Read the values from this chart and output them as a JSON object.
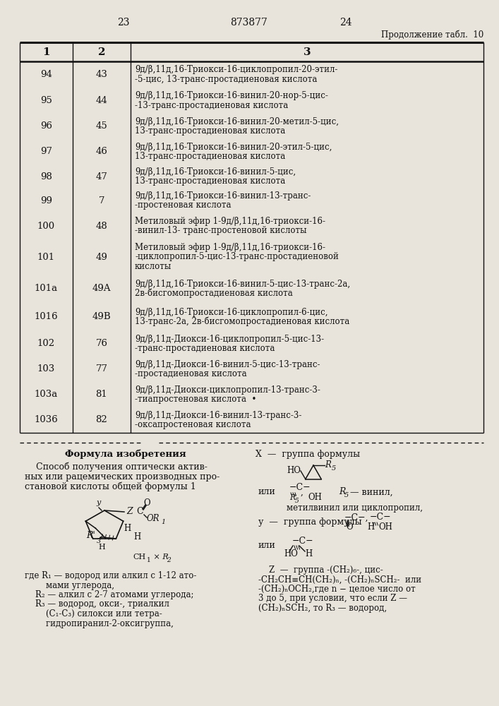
{
  "page_left": "23",
  "page_center": "873877",
  "page_right": "24",
  "continuation": "Продолжение табл.  10",
  "col1_header": "1",
  "col2_header": "2",
  "col3_header": "3",
  "rows": [
    {
      "c1": "94",
      "c2": "43",
      "c3": "9д/β,11д,16-Триокси-16-циклопропил-20-этил-\n-5-цис, 13-транс-простадиеновая кислота"
    },
    {
      "c1": "95",
      "c2": "44",
      "c3": "9д/β,11д,16-Триокси-16-винил-20-нор-5-цис-\n-13-транс-простадиеновая кислота"
    },
    {
      "c1": "96",
      "c2": "45",
      "c3": "9д/β,11д,16-Триокси-16-винил-20-метил-5-цис,\n13-транс-простадиеновая кислота"
    },
    {
      "c1": "97",
      "c2": "46",
      "c3": "9д/β,11д,16-Триокси-16-винил-20-этил-5-цис,\n13-транс-простадиеновая кислота"
    },
    {
      "c1": "98",
      "c2": "47",
      "c3": "9д/β,11д,16-Триокси-16-винил-5-цис,\n13-транс-простадиеновая кислота"
    },
    {
      "c1": "99",
      "c2": "7",
      "c3": "9д/β,11д,16-Триокси-16-винил-13-транс-\n-простеновая кислота"
    },
    {
      "c1": "100",
      "c2": "48",
      "c3": "Метиловый эфир 1-9д/β,11д,16-триокси-16-\n-винил-13- транс-простеновой кислоты"
    },
    {
      "c1": "101",
      "c2": "49",
      "c3": "Метиловый эфир 1-9д/β,11д,16-триокси-16-\n-циклопропил-5-цис-13-транс-простадиеновой\nкислоты"
    },
    {
      "c1": "101a",
      "c2": "49A",
      "c3": "9д/β,11д,16-Триокси-16-винил-5-цис-13-транс-2а,\n2в-бисгомопростадиеновая кислота"
    },
    {
      "c1": "1016",
      "c2": "49B",
      "c3": "9д/β,11д,16-Триокси-16-циклопропил-6-цис,\n13-транс-2а, 2в-бисгомопростадиеновая кислота"
    },
    {
      "c1": "102",
      "c2": "76",
      "c3": "9д/β,11д-Диокси-16-циклопропил-5-цис-13-\n-транс-простадиеновая кислота"
    },
    {
      "c1": "103",
      "c2": "77",
      "c3": "9д/β,11д-Диокси-16-винил-5-цис-13-транс-\n-простадиеновая кислота"
    },
    {
      "c1": "103а",
      "c2": "81",
      "c3": "9д/β,11д-Диокси-циклопропил-13-транс-3-\n-тиапростеновая кислота  •"
    },
    {
      "c1": "1036",
      "c2": "82",
      "c3": "9д/β,11д-Диокси-16-винил-13-транс-3-\n-оксапростеновая кислота"
    }
  ],
  "bg_color": "#e8e4db"
}
